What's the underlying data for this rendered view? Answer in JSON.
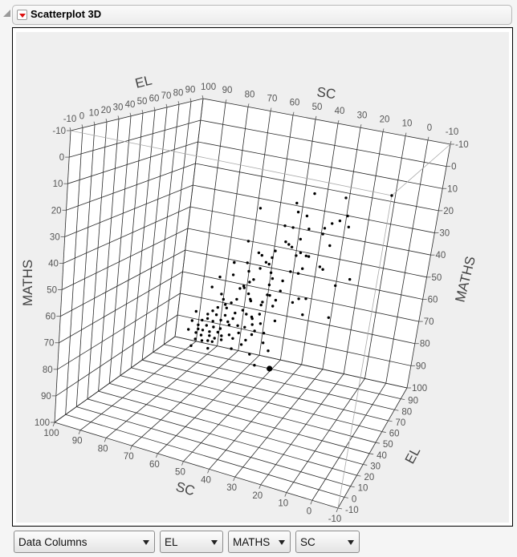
{
  "header": {
    "title": "Scatterplot 3D"
  },
  "controls": {
    "role_select": "Data Columns",
    "x_select": "EL",
    "y_select": "MATHS",
    "z_select": "SC"
  },
  "chart_data": {
    "type": "scatter3d",
    "columns": [
      "SC",
      "EL",
      "MATHS"
    ],
    "axes": {
      "sc": {
        "label": "SC",
        "range": [
          -10,
          100
        ]
      },
      "el": {
        "label": "EL",
        "range": [
          -10,
          100
        ]
      },
      "maths": {
        "label": "MATHS",
        "range": [
          -10,
          100
        ],
        "reversed": true
      }
    },
    "ticks": [
      -10,
      0,
      10,
      20,
      30,
      40,
      50,
      60,
      70,
      80,
      90,
      100
    ],
    "grid": true,
    "point_color": "#000000",
    "points": [
      [
        -10,
        -10,
        -10
      ],
      [
        6,
        -5,
        -5
      ],
      [
        17,
        -4,
        -4
      ],
      [
        24,
        2,
        2
      ],
      [
        38,
        8,
        8
      ],
      [
        24,
        6,
        6
      ],
      [
        21,
        7,
        7
      ],
      [
        6,
        3,
        3
      ],
      [
        9,
        6,
        6
      ],
      [
        12,
        8,
        8
      ],
      [
        30,
        14,
        14
      ],
      [
        27,
        14,
        14
      ],
      [
        21,
        13,
        13
      ],
      [
        15,
        11,
        11
      ],
      [
        6,
        8,
        8
      ],
      [
        16,
        14,
        14
      ],
      [
        25,
        19,
        19
      ],
      [
        31,
        22,
        22
      ],
      [
        30,
        23,
        23
      ],
      [
        29,
        24,
        24
      ],
      [
        46,
        26,
        26
      ],
      [
        36,
        28,
        28
      ],
      [
        14,
        19,
        19
      ],
      [
        28,
        28,
        28
      ],
      [
        26,
        26,
        26
      ],
      [
        24,
        27,
        27
      ],
      [
        23,
        27,
        27
      ],
      [
        43,
        31,
        31
      ],
      [
        42,
        32,
        32
      ],
      [
        38,
        32,
        32
      ],
      [
        49,
        38,
        38
      ],
      [
        40,
        36,
        36
      ],
      [
        37,
        21,
        31
      ],
      [
        40,
        25,
        35
      ],
      [
        23,
        20,
        30
      ],
      [
        16,
        17,
        27
      ],
      [
        15,
        18,
        28
      ],
      [
        28,
        23,
        33
      ],
      [
        25,
        23,
        33
      ],
      [
        36,
        26,
        36
      ],
      [
        45,
        28,
        38
      ],
      [
        50,
        25,
        35
      ],
      [
        36,
        29,
        39
      ],
      [
        44,
        32,
        42
      ],
      [
        32,
        29,
        39
      ],
      [
        5,
        20,
        30
      ],
      [
        11,
        25,
        35
      ],
      [
        38,
        33,
        43
      ],
      [
        46,
        34,
        44
      ],
      [
        51,
        39,
        49
      ],
      [
        49,
        38,
        48
      ],
      [
        34,
        35,
        45
      ],
      [
        39,
        39,
        49
      ],
      [
        37,
        41,
        51
      ],
      [
        27,
        37,
        47
      ],
      [
        24,
        36,
        46
      ],
      [
        30,
        40,
        50
      ],
      [
        43,
        44,
        54
      ],
      [
        48,
        41,
        51
      ],
      [
        48,
        45,
        55
      ],
      [
        39,
        45,
        55
      ],
      [
        27,
        46,
        56
      ],
      [
        16,
        44,
        54
      ],
      [
        46,
        52,
        62
      ],
      [
        50,
        56,
        66
      ],
      [
        50,
        25,
        35
      ],
      [
        58,
        35,
        45
      ],
      [
        52,
        32,
        42
      ],
      [
        63,
        42,
        52
      ],
      [
        49,
        37,
        47
      ],
      [
        60,
        45,
        55
      ],
      [
        60,
        48,
        58
      ],
      [
        54,
        46,
        56
      ],
      [
        48,
        44,
        54
      ],
      [
        40,
        39,
        49
      ],
      [
        44,
        46,
        56
      ],
      [
        57,
        49,
        59
      ],
      [
        60,
        51,
        61
      ],
      [
        60,
        53,
        63
      ],
      [
        64,
        54,
        64
      ],
      [
        67,
        57,
        67
      ],
      [
        70,
        60,
        70
      ],
      [
        75,
        60,
        70
      ],
      [
        66,
        59,
        69
      ],
      [
        62,
        58,
        68
      ],
      [
        57,
        55,
        65
      ],
      [
        53,
        52,
        62
      ],
      [
        52,
        54,
        64
      ],
      [
        71,
        63,
        73
      ],
      [
        74,
        65,
        75
      ],
      [
        69,
        64,
        74
      ],
      [
        65,
        62,
        72
      ],
      [
        62,
        62,
        72
      ],
      [
        59,
        59,
        69
      ],
      [
        50,
        55,
        65
      ],
      [
        47,
        58,
        68
      ],
      [
        40,
        54,
        64
      ],
      [
        79,
        67,
        77
      ],
      [
        77,
        69,
        79
      ],
      [
        73,
        68,
        78
      ],
      [
        70,
        68,
        78
      ],
      [
        67,
        68,
        78
      ],
      [
        62,
        64,
        74
      ],
      [
        58,
        63,
        73
      ],
      [
        55,
        63,
        73
      ],
      [
        51,
        60,
        70
      ],
      [
        83,
        74,
        84
      ],
      [
        78,
        72,
        82
      ],
      [
        76,
        72,
        82
      ],
      [
        73,
        72,
        82
      ],
      [
        69,
        71,
        81
      ],
      [
        64,
        71,
        81
      ],
      [
        59,
        68,
        78
      ],
      [
        53,
        67,
        77
      ],
      [
        51,
        64,
        74
      ],
      [
        47,
        64,
        74
      ],
      [
        80,
        75,
        85
      ],
      [
        78,
        76,
        86
      ],
      [
        74,
        75,
        85
      ],
      [
        72,
        76,
        86
      ],
      [
        68,
        73,
        83
      ],
      [
        63,
        73,
        83
      ],
      [
        57,
        72,
        82
      ],
      [
        82,
        80,
        90
      ],
      [
        79,
        80,
        90
      ],
      [
        76,
        79,
        89
      ],
      [
        74,
        79,
        89
      ],
      [
        69,
        76,
        86
      ],
      [
        86,
        86,
        96
      ],
      [
        78,
        85,
        95
      ],
      [
        66,
        81,
        91
      ],
      [
        60,
        76,
        86
      ],
      [
        49,
        71,
        81
      ],
      [
        48,
        76,
        86
      ],
      [
        58,
        82,
        92
      ],
      [
        58,
        90,
        100
      ]
    ],
    "highlighted_point": [
      51,
      90,
      100
    ]
  }
}
